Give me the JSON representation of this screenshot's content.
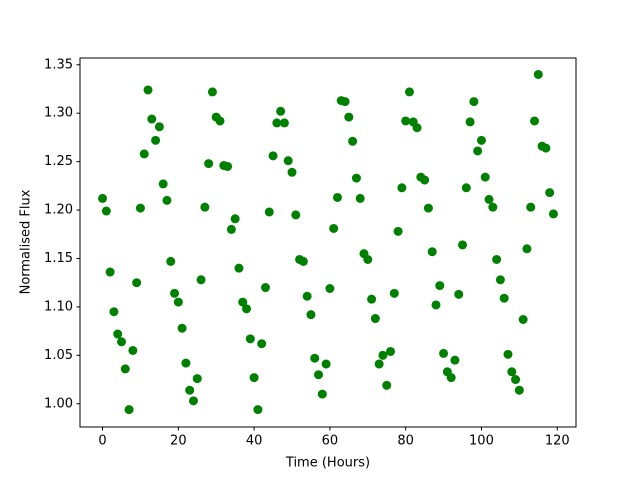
{
  "chart_data": {
    "type": "scatter",
    "x_label": "Time (Hours)",
    "y_label": "Normalised Flux",
    "color": "#008000",
    "x": [
      0,
      1,
      2,
      3,
      4,
      5,
      6,
      7,
      8,
      9,
      10,
      11,
      12,
      13,
      14,
      15,
      16,
      17,
      18,
      19,
      20,
      21,
      22,
      23,
      24,
      25,
      26,
      27,
      28,
      29,
      30,
      31,
      32,
      33,
      34,
      35,
      36,
      37,
      38,
      39,
      40,
      41,
      42,
      43,
      44,
      45,
      46,
      47,
      48,
      49,
      50,
      51,
      52,
      53,
      54,
      55,
      56,
      57,
      58,
      59,
      60,
      61,
      62,
      63,
      64,
      65,
      66,
      67,
      68,
      69,
      70,
      71,
      72,
      73,
      74,
      75,
      76,
      77,
      78,
      79,
      80,
      81,
      82,
      83,
      84,
      85,
      86,
      87,
      88,
      89,
      90,
      91,
      92,
      93,
      94,
      95,
      96,
      97,
      98,
      99,
      100,
      101,
      102,
      103,
      104,
      105,
      106,
      107,
      108,
      109,
      110,
      111,
      112,
      113,
      114,
      115,
      116,
      117,
      118,
      119
    ],
    "values": [
      1.212,
      1.199,
      1.136,
      1.095,
      1.072,
      1.064,
      1.036,
      0.994,
      1.055,
      1.125,
      1.202,
      1.258,
      1.324,
      1.294,
      1.272,
      1.286,
      1.227,
      1.21,
      1.147,
      1.114,
      1.105,
      1.078,
      1.042,
      1.014,
      1.003,
      1.026,
      1.128,
      1.203,
      1.248,
      1.322,
      1.296,
      1.292,
      1.246,
      1.245,
      1.18,
      1.191,
      1.14,
      1.105,
      1.098,
      1.067,
      1.027,
      0.994,
      1.062,
      1.12,
      1.198,
      1.256,
      1.29,
      1.302,
      1.29,
      1.251,
      1.239,
      1.195,
      1.149,
      1.147,
      1.111,
      1.092,
      1.047,
      1.03,
      1.01,
      1.041,
      1.119,
      1.181,
      1.213,
      1.313,
      1.312,
      1.296,
      1.271,
      1.233,
      1.212,
      1.155,
      1.149,
      1.108,
      1.088,
      1.041,
      1.05,
      1.019,
      1.054,
      1.114,
      1.178,
      1.223,
      1.292,
      1.322,
      1.291,
      1.285,
      1.234,
      1.231,
      1.202,
      1.157,
      1.102,
      1.122,
      1.052,
      1.033,
      1.027,
      1.045,
      1.113,
      1.164,
      1.223,
      1.291,
      1.312,
      1.261,
      1.272,
      1.234,
      1.211,
      1.203,
      1.149,
      1.128,
      1.109,
      1.051,
      1.033,
      1.025,
      1.014,
      1.087,
      1.16,
      1.203,
      1.292,
      1.34,
      1.266,
      1.264,
      1.218,
      1.196
    ],
    "xlim": [
      -5.95,
      124.95
    ],
    "xticks": [
      0,
      20,
      40,
      60,
      80,
      100,
      120
    ],
    "ylim": [
      0.976,
      1.357
    ],
    "yticks": [
      {
        "value": 1.0,
        "label": "1.00"
      },
      {
        "value": 1.05,
        "label": "1.05"
      },
      {
        "value": 1.1,
        "label": "1.10"
      },
      {
        "value": 1.15,
        "label": "1.15"
      },
      {
        "value": 1.2,
        "label": "1.20"
      },
      {
        "value": 1.25,
        "label": "1.25"
      },
      {
        "value": 1.3,
        "label": "1.30"
      },
      {
        "value": 1.35,
        "label": "1.35"
      }
    ],
    "grid": false
  }
}
